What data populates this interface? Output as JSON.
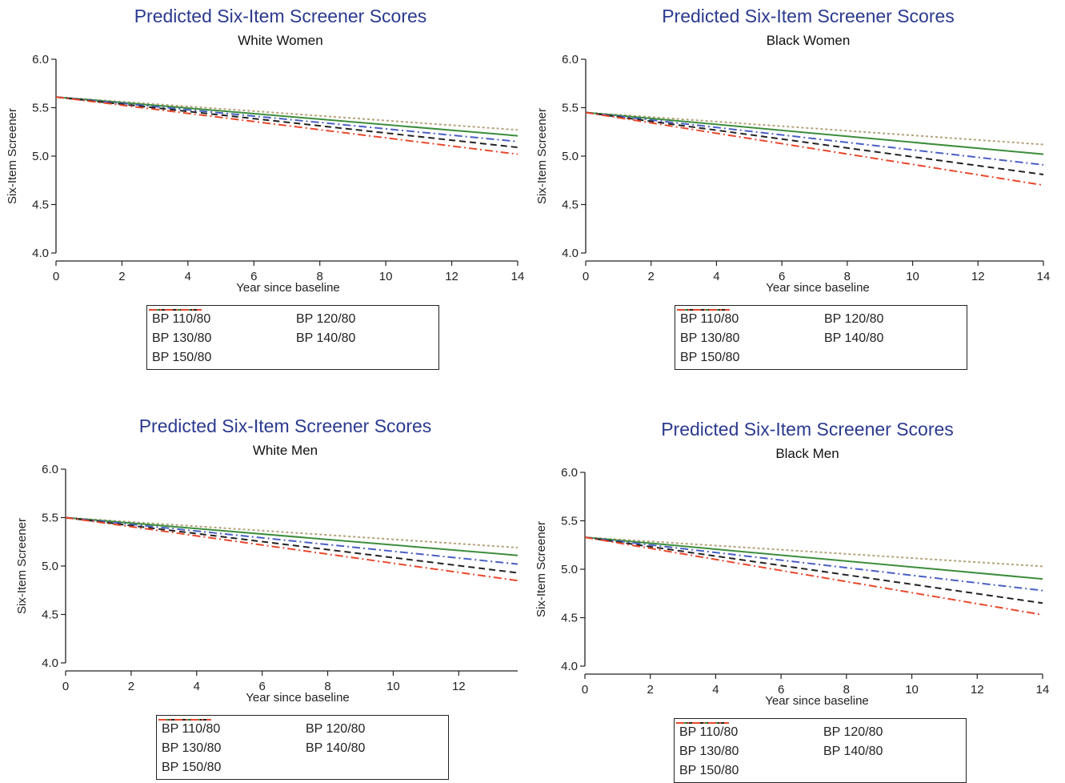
{
  "legend_entries": [
    "BP 110/80",
    "BP 120/80",
    "BP 130/80",
    "BP 140/80",
    "BP 150/80"
  ],
  "series_styles": [
    {
      "color": "#b5a27a",
      "dash": "3,3"
    },
    {
      "color": "#3c8d3c",
      "dash": ""
    },
    {
      "color": "#4a5fc4",
      "dash": "10,4,2,4"
    },
    {
      "color": "#222222",
      "dash": "8,5"
    },
    {
      "color": "#e8482c",
      "dash": "10,4,2,4"
    }
  ],
  "chart_data": [
    {
      "type": "line",
      "title": "Predicted Six-Item Screener Scores",
      "subtitle": "White Women",
      "xlabel": "Year since baseline",
      "ylabel": "Six-Item Screener",
      "xlim": [
        0,
        14
      ],
      "ylim": [
        4.0,
        6.0
      ],
      "xticks": [
        "0",
        "2",
        "4",
        "6",
        "8",
        "10",
        "12",
        "14"
      ],
      "yticks": [
        "4.0",
        "4.5",
        "5.0",
        "5.5",
        "6.0"
      ],
      "x": [
        0,
        14
      ],
      "series": [
        {
          "name": "BP 110/80",
          "values": [
            5.61,
            5.27
          ]
        },
        {
          "name": "BP 120/80",
          "values": [
            5.61,
            5.21
          ]
        },
        {
          "name": "BP 130/80",
          "values": [
            5.61,
            5.15
          ]
        },
        {
          "name": "BP 140/80",
          "values": [
            5.61,
            5.09
          ]
        },
        {
          "name": "BP 150/80",
          "values": [
            5.61,
            5.02
          ]
        }
      ]
    },
    {
      "type": "line",
      "title": "Predicted Six-Item Screener Scores",
      "subtitle": "Black Women",
      "xlabel": "Year since baseline",
      "ylabel": "Six-Item Screener",
      "xlim": [
        0,
        14
      ],
      "ylim": [
        4.0,
        6.0
      ],
      "xticks": [
        "0",
        "2",
        "4",
        "6",
        "8",
        "10",
        "12",
        "14"
      ],
      "yticks": [
        "4.0",
        "4.5",
        "5.0",
        "5.5",
        "6.0"
      ],
      "x": [
        0,
        14
      ],
      "series": [
        {
          "name": "BP 110/80",
          "values": [
            5.45,
            5.12
          ]
        },
        {
          "name": "BP 120/80",
          "values": [
            5.45,
            5.02
          ]
        },
        {
          "name": "BP 130/80",
          "values": [
            5.45,
            4.91
          ]
        },
        {
          "name": "BP 140/80",
          "values": [
            5.45,
            4.81
          ]
        },
        {
          "name": "BP 150/80",
          "values": [
            5.45,
            4.7
          ]
        }
      ]
    },
    {
      "type": "line",
      "title": "Predicted Six-Item Screener Scores",
      "subtitle": "White Men",
      "xlabel": "Year since baseline",
      "ylabel": "Six-Item Screener",
      "xlim": [
        0,
        13.8
      ],
      "ylim": [
        4.0,
        6.0
      ],
      "xticks": [
        "0",
        "2",
        "4",
        "6",
        "8",
        "10",
        "12"
      ],
      "yticks": [
        "4.0",
        "4.5",
        "5.0",
        "5.5",
        "6.0"
      ],
      "x": [
        0,
        13.8
      ],
      "series": [
        {
          "name": "BP 110/80",
          "values": [
            5.5,
            5.19
          ]
        },
        {
          "name": "BP 120/80",
          "values": [
            5.5,
            5.11
          ]
        },
        {
          "name": "BP 130/80",
          "values": [
            5.5,
            5.02
          ]
        },
        {
          "name": "BP 140/80",
          "values": [
            5.5,
            4.93
          ]
        },
        {
          "name": "BP 150/80",
          "values": [
            5.5,
            4.85
          ]
        }
      ]
    },
    {
      "type": "line",
      "title": "Predicted Six-Item Screener Scores",
      "subtitle": "Black Men",
      "xlabel": "Year since baseline",
      "ylabel": "Six-Item Screener",
      "xlim": [
        0,
        14
      ],
      "ylim": [
        4.0,
        6.0
      ],
      "xticks": [
        "0",
        "2",
        "4",
        "6",
        "8",
        "10",
        "12",
        "14"
      ],
      "yticks": [
        "4.0",
        "4.5",
        "5.0",
        "5.5",
        "6.0"
      ],
      "x": [
        0,
        14
      ],
      "series": [
        {
          "name": "BP 110/80",
          "values": [
            5.33,
            5.03
          ]
        },
        {
          "name": "BP 120/80",
          "values": [
            5.33,
            4.9
          ]
        },
        {
          "name": "BP 130/80",
          "values": [
            5.33,
            4.78
          ]
        },
        {
          "name": "BP 140/80",
          "values": [
            5.33,
            4.65
          ]
        },
        {
          "name": "BP 150/80",
          "values": [
            5.33,
            4.53
          ]
        }
      ]
    }
  ]
}
